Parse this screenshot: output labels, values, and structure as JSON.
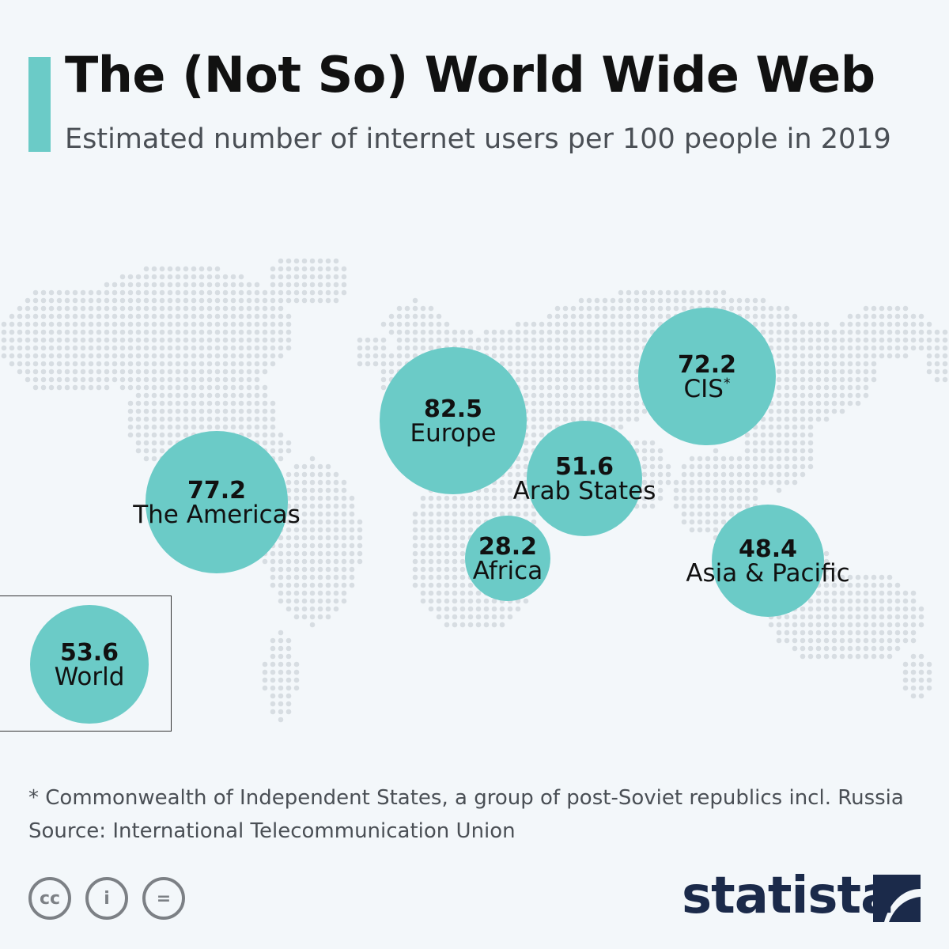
{
  "header": {
    "title": "The (Not So) World Wide Web",
    "subtitle": "Estimated number of internet users per 100 people in 2019"
  },
  "colors": {
    "accent": "#6bcbc7",
    "bubble": "#6bcbc7",
    "map_dot": "#d7dde2",
    "background": "#f3f7fa",
    "logo": "#1b2a4a"
  },
  "chart_data": {
    "type": "bubble-map",
    "unit": "internet users per 100 people",
    "year": 2019,
    "regions": [
      {
        "name": "The Americas",
        "value": "77.2",
        "marker": ""
      },
      {
        "name": "Europe",
        "value": "82.5",
        "marker": ""
      },
      {
        "name": "CIS",
        "value": "72.2",
        "marker": "*"
      },
      {
        "name": "Arab States",
        "value": "51.6",
        "marker": ""
      },
      {
        "name": "Africa",
        "value": "28.2",
        "marker": ""
      },
      {
        "name": "Asia & Pacific",
        "value": "48.4",
        "marker": ""
      }
    ],
    "world": {
      "name": "World",
      "value": "53.6"
    }
  },
  "footer": {
    "footnote": "* Commonwealth of Independent States, a group of post-Soviet republics incl. Russia",
    "source": "Source: International Telecommunication Union",
    "license_icons": [
      "cc-icon",
      "by-person-icon",
      "equals-nd-icon"
    ],
    "license_text": [
      "cc",
      "i",
      "="
    ],
    "logo": "statista"
  }
}
